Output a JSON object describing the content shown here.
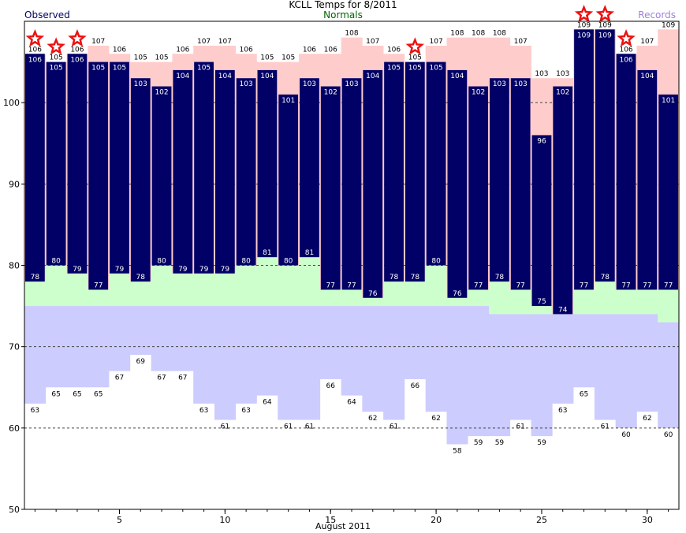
{
  "header": {
    "title": "KCLL Temps for 8/2011",
    "legend_observed": "Observed",
    "legend_normals": "Normals",
    "legend_records": "Records"
  },
  "chart_data": {
    "type": "bar",
    "title": "KCLL Temps for 8/2011",
    "xlabel": "August 2011",
    "ylabel": "",
    "ylim": [
      50,
      110
    ],
    "xlim": [
      0.5,
      31.5
    ],
    "y_ticks": [
      50,
      60,
      70,
      80,
      90,
      100
    ],
    "x_ticks": [
      5,
      10,
      15,
      20,
      25,
      30
    ],
    "grid": "dashed horizontal at 60, 70, 80, 90, 100",
    "days": [
      1,
      2,
      3,
      4,
      5,
      6,
      7,
      8,
      9,
      10,
      11,
      12,
      13,
      14,
      15,
      16,
      17,
      18,
      19,
      20,
      21,
      22,
      23,
      24,
      25,
      26,
      27,
      28,
      29,
      30,
      31
    ],
    "observed_high": [
      106,
      105,
      106,
      105,
      105,
      103,
      102,
      104,
      105,
      104,
      103,
      104,
      101,
      103,
      102,
      103,
      104,
      105,
      105,
      105,
      104,
      102,
      103,
      103,
      96,
      102,
      109,
      109,
      106,
      104,
      101
    ],
    "observed_low": [
      78,
      80,
      79,
      77,
      79,
      78,
      80,
      79,
      79,
      79,
      80,
      81,
      80,
      81,
      77,
      77,
      76,
      78,
      78,
      80,
      76,
      77,
      78,
      77,
      75,
      74,
      77,
      78,
      77,
      77,
      77
    ],
    "record_high": [
      106,
      105,
      106,
      107,
      106,
      105,
      105,
      106,
      107,
      107,
      106,
      105,
      105,
      106,
      106,
      108,
      107,
      106,
      105,
      107,
      108,
      108,
      108,
      107,
      103,
      103,
      109,
      109,
      106,
      107,
      109
    ],
    "record_low": [
      63,
      65,
      65,
      65,
      67,
      69,
      67,
      67,
      63,
      61,
      63,
      64,
      61,
      61,
      66,
      64,
      62,
      61,
      66,
      62,
      58,
      59,
      59,
      61,
      59,
      63,
      65,
      61,
      60,
      62,
      60
    ],
    "normal_high": [
      78,
      80,
      79,
      77,
      79,
      78,
      80,
      79,
      79,
      79,
      80,
      81,
      80,
      81,
      77,
      77,
      76,
      78,
      78,
      80,
      76,
      77,
      78,
      77,
      75,
      74,
      77,
      78,
      77,
      77,
      77
    ],
    "normal_low": [
      75,
      75,
      75,
      75,
      75,
      75,
      75,
      75,
      75,
      75,
      75,
      75,
      75,
      75,
      75,
      75,
      75,
      75,
      75,
      75,
      75,
      75,
      74,
      74,
      74,
      74,
      74,
      74,
      74,
      74,
      73
    ],
    "record_set_days": [
      1,
      2,
      3,
      19,
      27,
      28,
      29
    ],
    "colors": {
      "observed": "#000066",
      "record_range": "#ffcccc",
      "normal_high_band": "#ccffcc",
      "normal_low_band": "#ccccff",
      "record_star": "#ee1111",
      "grid": "#444444"
    }
  }
}
